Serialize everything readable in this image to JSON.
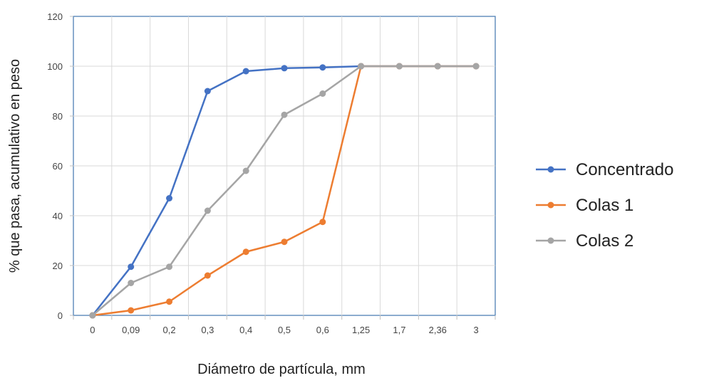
{
  "chart_data": {
    "type": "line",
    "title": "",
    "xlabel": "Diámetro de partícula,  mm",
    "ylabel": "% que pasa, acumulativo  en peso",
    "categories": [
      "0",
      "0,09",
      "0,2",
      "0,3",
      "0,4",
      "0,5",
      "0,6",
      "1,25",
      "1,7",
      "2,36",
      "3"
    ],
    "ylim": [
      0,
      120
    ],
    "yticks": [
      "0",
      "20",
      "40",
      "60",
      "80",
      "100",
      "120"
    ],
    "grid": true,
    "legend_position": "right",
    "series": [
      {
        "name": "Concentrado",
        "color": "#4472C4",
        "values": [
          0,
          19.5,
          47,
          90,
          98,
          99.2,
          99.5,
          100,
          100,
          100,
          100
        ]
      },
      {
        "name": "Colas 1",
        "color": "#ED7D31",
        "values": [
          0,
          2,
          5.5,
          16,
          25.5,
          29.5,
          37.5,
          100,
          100,
          100,
          100
        ]
      },
      {
        "name": "Colas 2",
        "color": "#A5A5A5",
        "values": [
          0,
          13,
          19.5,
          42,
          58,
          80.5,
          89,
          100,
          100,
          100,
          100
        ]
      }
    ]
  }
}
